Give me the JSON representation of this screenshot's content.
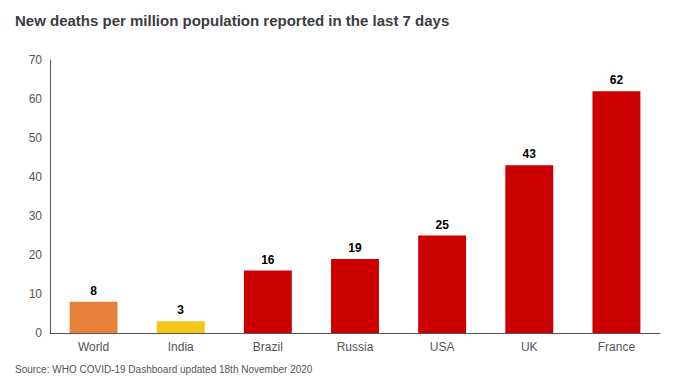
{
  "chart_data": {
    "type": "bar",
    "title": "New deaths per million population reported in the last 7 days",
    "annotation": "Source: WHO COVID-19 Dashboard updated 18th November 2020",
    "categories": [
      "World",
      "India",
      "Brazil",
      "Russia",
      "USA",
      "UK",
      "France"
    ],
    "values": [
      8,
      3,
      16,
      19,
      25,
      43,
      62
    ],
    "colors": [
      "#E8823A",
      "#F5C518",
      "#CC0000",
      "#CC0000",
      "#CC0000",
      "#CC0000",
      "#CC0000"
    ],
    "ylim": [
      0,
      70
    ],
    "yticks": [
      0,
      10,
      20,
      30,
      40,
      50,
      60,
      70
    ],
    "grid": false,
    "data_labels": true
  }
}
